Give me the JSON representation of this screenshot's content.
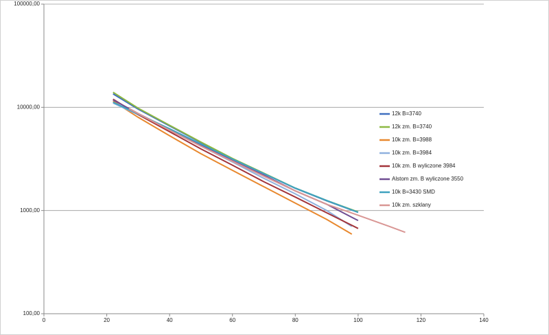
{
  "chart_data": {
    "type": "line",
    "xlim": [
      0,
      140
    ],
    "xticks": [
      0,
      20,
      40,
      60,
      80,
      100,
      120,
      140
    ],
    "ylim": [
      100,
      100000
    ],
    "log_y": true,
    "grid": true,
    "legend": "right",
    "yticks": [
      {
        "value": 100,
        "label": "100,00"
      },
      {
        "value": 1000,
        "label": "1000,00"
      },
      {
        "value": 10000,
        "label": "10000,00"
      },
      {
        "value": 100000,
        "label": "100000,00"
      }
    ],
    "series": [
      {
        "name": "12k B=3740",
        "color": "#3f6fbf",
        "x": [
          22,
          30,
          40,
          50,
          60,
          70,
          80,
          90,
          100
        ],
        "values": [
          13500,
          9600,
          6600,
          4550,
          3180,
          2280,
          1640,
          1240,
          960
        ]
      },
      {
        "name": "12k zm. B=3740",
        "color": "#8db843",
        "x": [
          22,
          30,
          40,
          50,
          60,
          70,
          80,
          90,
          100
        ],
        "values": [
          14000,
          9800,
          6700,
          4600,
          3200,
          2300,
          1650,
          1250,
          970
        ]
      },
      {
        "name": "10k zm. B=3988",
        "color": "#e8882e",
        "x": [
          22,
          30,
          40,
          50,
          60,
          70,
          80,
          90,
          98
        ],
        "values": [
          11500,
          8000,
          5300,
          3550,
          2450,
          1700,
          1180,
          820,
          590
        ]
      },
      {
        "name": "10k zm. B=3984",
        "color": "#8fb0de",
        "x": [
          22,
          30,
          40,
          50,
          60,
          70,
          80,
          90,
          98
        ],
        "values": [
          11000,
          8500,
          6000,
          4200,
          2950,
          2050,
          1450,
          1000,
          700
        ]
      },
      {
        "name": "10k zm. B wyliczone 3984",
        "color": "#a3343a",
        "x": [
          22,
          30,
          40,
          50,
          60,
          70,
          80,
          90,
          100
        ],
        "values": [
          12000,
          8500,
          5800,
          3950,
          2750,
          1900,
          1350,
          950,
          670
        ]
      },
      {
        "name": "Alstom zm. B wyliczone 3550",
        "color": "#6f4d92",
        "x": [
          22,
          30,
          40,
          50,
          60,
          70,
          80,
          90,
          100
        ],
        "values": [
          11800,
          8700,
          6100,
          4300,
          3050,
          2200,
          1550,
          1150,
          800
        ]
      },
      {
        "name": "10k B=3430 SMD",
        "color": "#3ea2bf",
        "x": [
          22,
          30,
          40,
          50,
          60,
          70,
          80,
          90,
          100
        ],
        "values": [
          11200,
          8600,
          6200,
          4400,
          3150,
          2280,
          1650,
          1250,
          960
        ]
      },
      {
        "name": "10k zm. szklany",
        "color": "#d99694",
        "x": [
          27,
          40,
          50,
          60,
          70,
          80,
          90,
          100,
          110,
          115
        ],
        "values": [
          9700,
          6000,
          4200,
          3000,
          2150,
          1550,
          1150,
          900,
          700,
          615
        ]
      }
    ]
  }
}
